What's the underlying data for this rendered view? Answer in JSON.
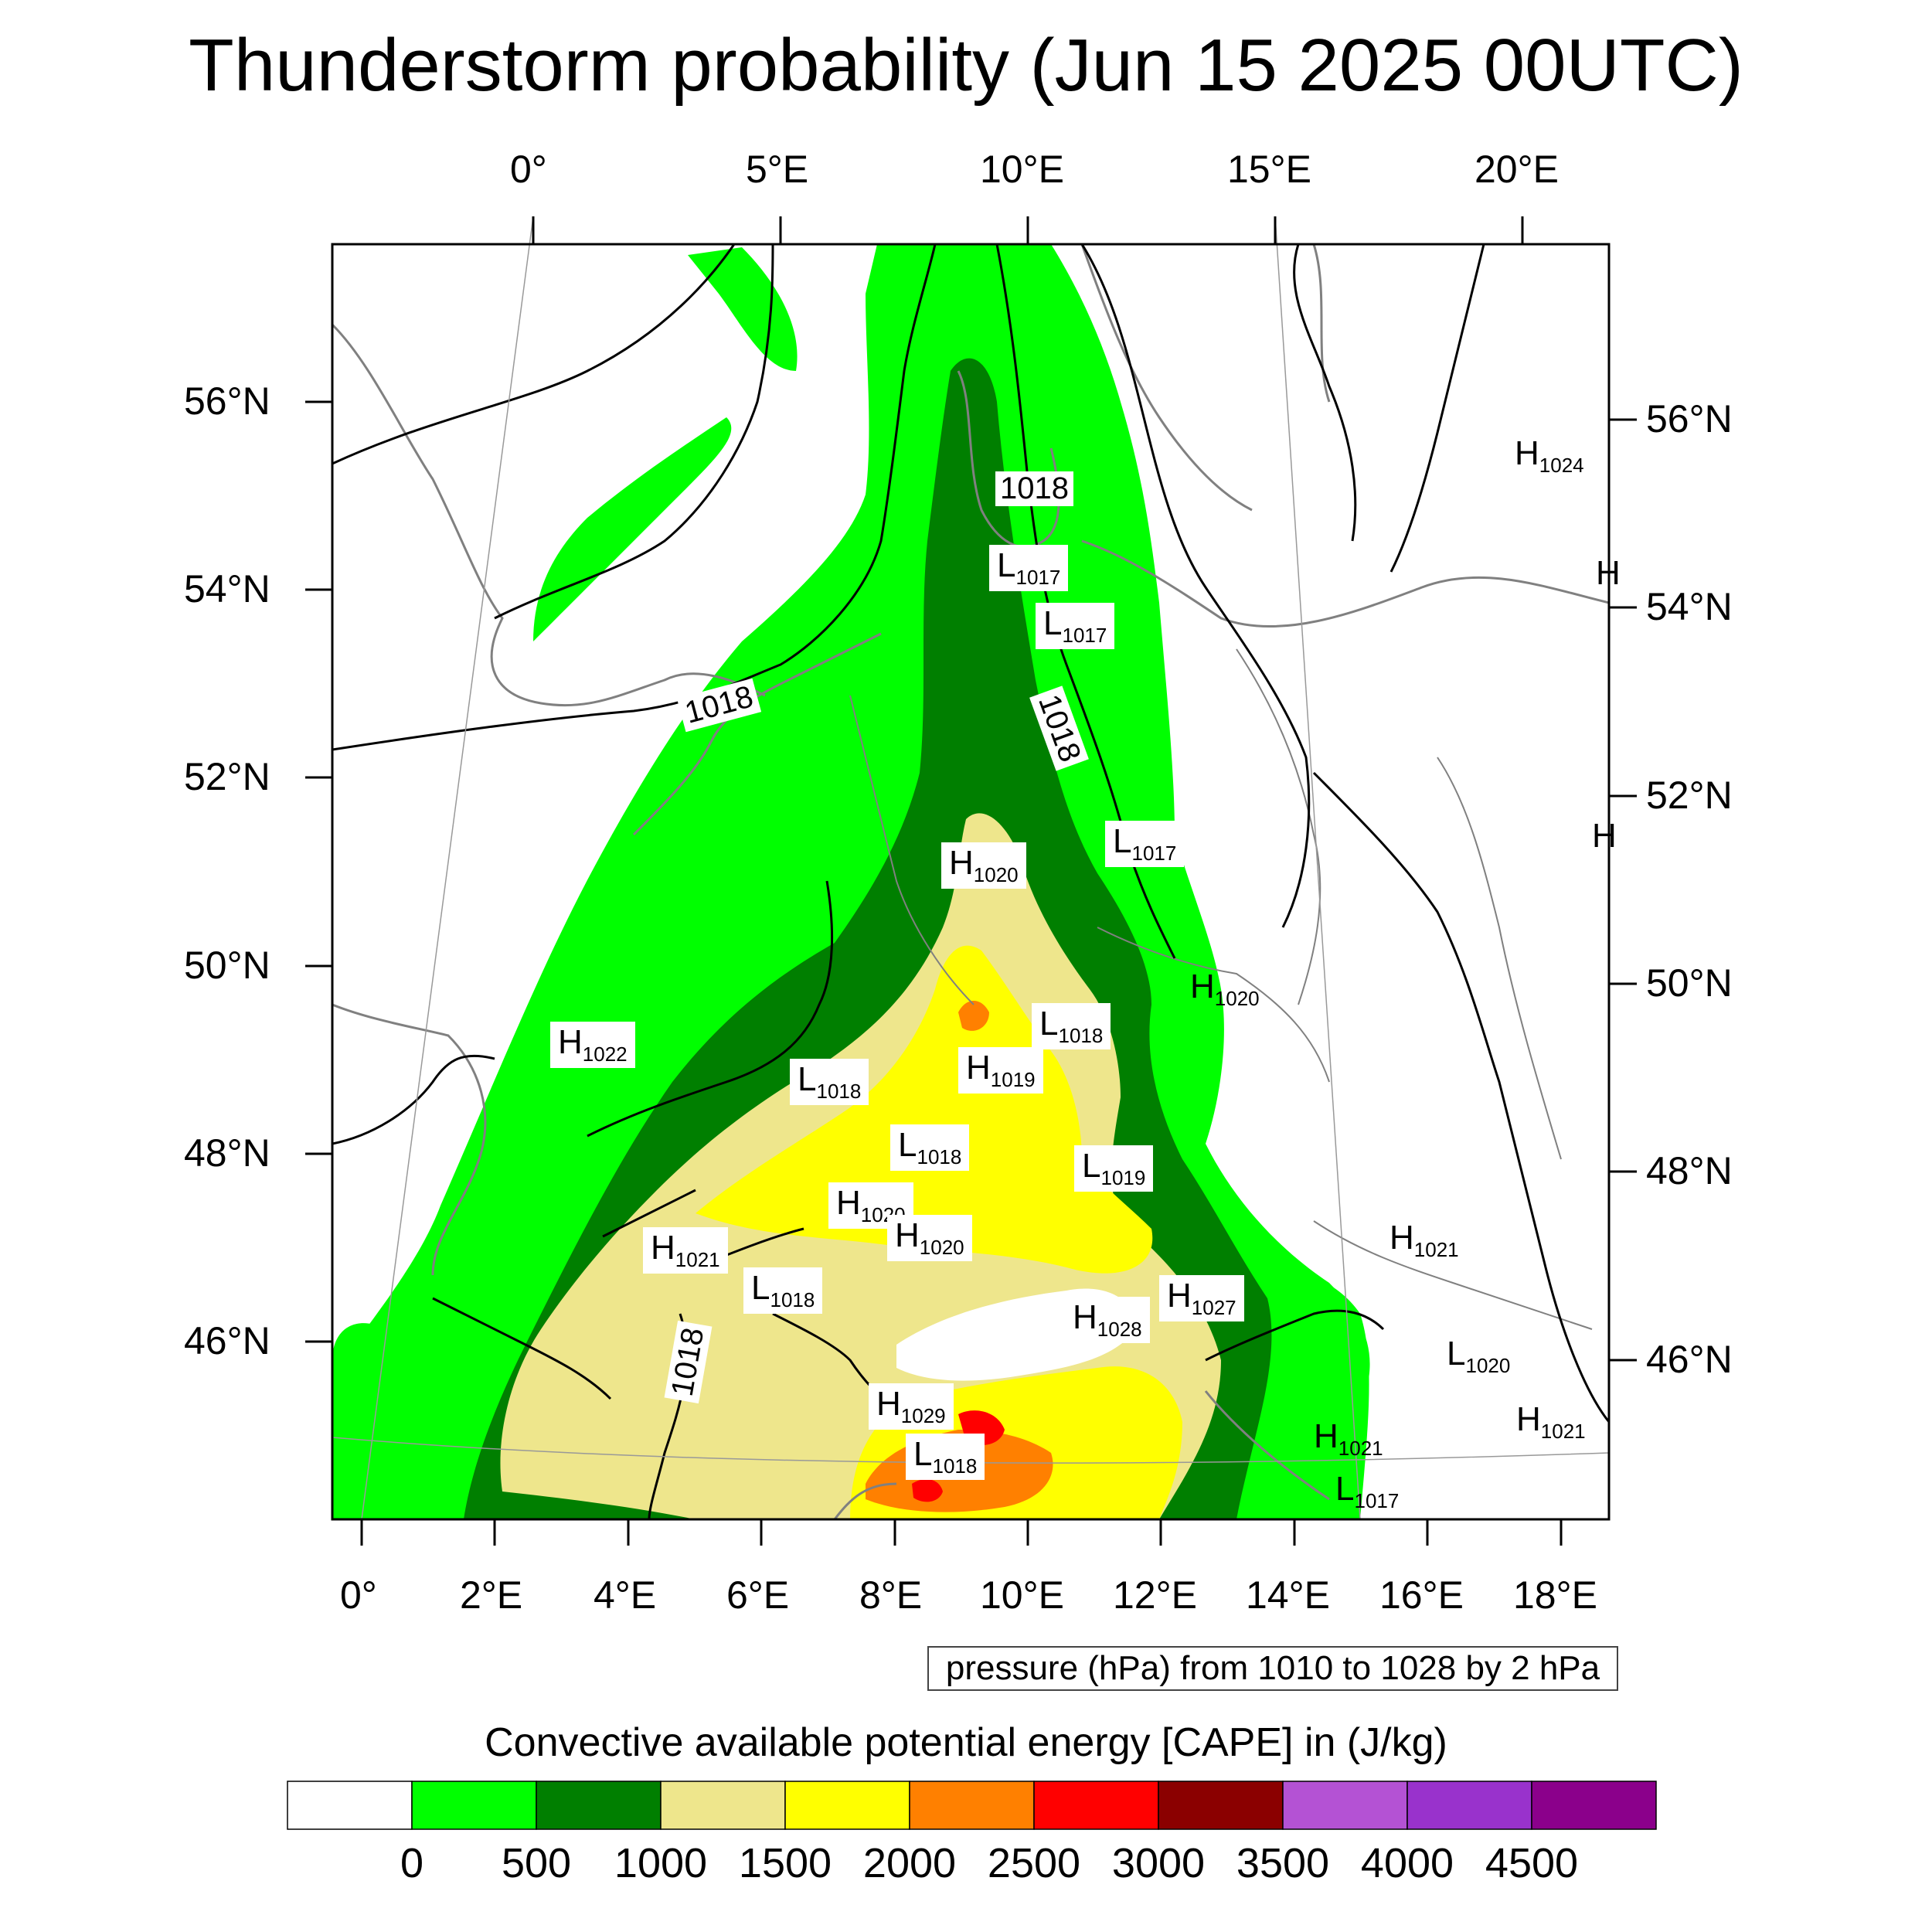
{
  "title": "Thunderstorm probability (Jun 15 2025 00UTC)",
  "top_lon_labels": [
    "0°",
    "5°E",
    "10°E",
    "15°E",
    "20°E"
  ],
  "bottom_lon_labels": [
    "0°",
    "2°E",
    "4°E",
    "6°E",
    "8°E",
    "10°E",
    "12°E",
    "14°E",
    "16°E",
    "18°E"
  ],
  "left_lat_labels": [
    "56°N",
    "54°N",
    "52°N",
    "50°N",
    "48°N",
    "46°N"
  ],
  "right_lat_labels": [
    "56°N",
    "54°N",
    "52°N",
    "50°N",
    "48°N",
    "46°N"
  ],
  "contour_info": "pressure (hPa) from 1010 to 1028 by 2 hPa",
  "colorbar": {
    "title": "Convective available potential energy [CAPE] in (J/kg)",
    "colors": [
      "#ffffff",
      "#00ff00",
      "#007f00",
      "#eee68c",
      "#ffff00",
      "#ff8000",
      "#ff0000",
      "#8b0000",
      "#b452d4",
      "#9932cc",
      "#8b008b"
    ],
    "ticks": [
      "0",
      "500",
      "1000",
      "1500",
      "2000",
      "2500",
      "3000",
      "3500",
      "4000",
      "4500"
    ]
  },
  "pressure_centers": [
    {
      "type": "H",
      "value": "1024"
    },
    {
      "type": "H",
      "value": ""
    },
    {
      "type": "H",
      "value": ""
    },
    {
      "type": "L",
      "value": "1017"
    },
    {
      "type": "L",
      "value": "1017"
    },
    {
      "type": "L",
      "value": "1017"
    },
    {
      "type": "H",
      "value": "1020"
    },
    {
      "type": "H",
      "value": "1020"
    },
    {
      "type": "L",
      "value": "1018"
    },
    {
      "type": "H",
      "value": "1019"
    },
    {
      "type": "H",
      "value": "1022"
    },
    {
      "type": "L",
      "value": "1018"
    },
    {
      "type": "L",
      "value": "1018"
    },
    {
      "type": "L",
      "value": "1019"
    },
    {
      "type": "H",
      "value": "1020"
    },
    {
      "type": "H",
      "value": "1020"
    },
    {
      "type": "H",
      "value": "1021"
    },
    {
      "type": "H",
      "value": "1021"
    },
    {
      "type": "L",
      "value": "1018"
    },
    {
      "type": "H",
      "value": "1027"
    },
    {
      "type": "H",
      "value": "1028"
    },
    {
      "type": "L",
      "value": "1020"
    },
    {
      "type": "H",
      "value": "1029"
    },
    {
      "type": "H",
      "value": "1021"
    },
    {
      "type": "H",
      "value": "1021"
    },
    {
      "type": "L",
      "value": "1018"
    },
    {
      "type": "L",
      "value": "1017"
    }
  ],
  "isobar_labels": [
    "1018",
    "1018",
    "1018",
    "1018"
  ]
}
